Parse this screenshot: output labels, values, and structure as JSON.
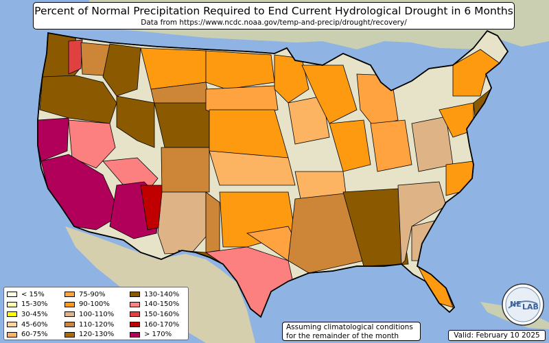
{
  "title": "Percent of Normal Precipitation Required to End Current Hydrological Drought in 6 Months",
  "subtitle": "Data from https://www.ncdc.noaa.gov/temp-and-precip/drought/recovery/",
  "note": {
    "line1": "Assuming climatological conditions",
    "line2": "for the remainder of the month"
  },
  "valid": "Valid: February 10 2025",
  "logo": {
    "text_left": "NE",
    "text_right": "LAB"
  },
  "legend": [
    {
      "label": "< 15%",
      "color": "#ffffe6"
    },
    {
      "label": "15-30%",
      "color": "#ffffa8"
    },
    {
      "label": "30-45%",
      "color": "#ffff00"
    },
    {
      "label": "45-60%",
      "color": "#fdd49a"
    },
    {
      "label": "60-75%",
      "color": "#fdb462"
    },
    {
      "label": "75-90%",
      "color": "#fea340"
    },
    {
      "label": "90-100%",
      "color": "#fe9a10"
    },
    {
      "label": "100-110%",
      "color": "#deb486"
    },
    {
      "label": "110-120%",
      "color": "#cd8538"
    },
    {
      "label": "120-130%",
      "color": "#a86b08"
    },
    {
      "label": "130-140%",
      "color": "#8b5a00"
    },
    {
      "label": "140-150%",
      "color": "#fc8080"
    },
    {
      "label": "150-160%",
      "color": "#e04040"
    },
    {
      "label": "160-170%",
      "color": "#c00000"
    },
    {
      "label": "> 170%",
      "color": "#b0005a"
    }
  ],
  "colors": {
    "ocean": "#8fb4e3",
    "land": "#e6e3c9",
    "forest": "#b8cf95"
  }
}
